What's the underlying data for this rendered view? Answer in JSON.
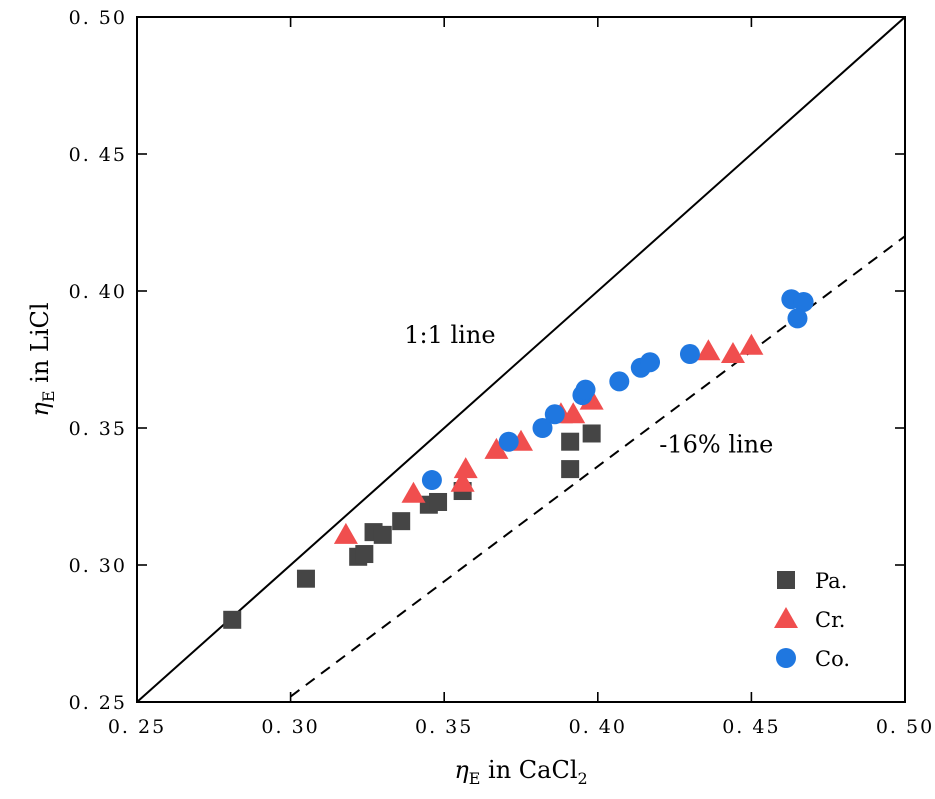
{
  "chart_data": {
    "type": "scatter",
    "xlabel": {
      "symbol": "η",
      "sub": "E",
      "text": " in CaCl",
      "sub2": "2"
    },
    "ylabel": {
      "symbol": "η",
      "sub": "E",
      "text": " in LiCl"
    },
    "xlim": [
      0.25,
      0.5
    ],
    "ylim": [
      0.25,
      0.5
    ],
    "xticks": [
      "0. 25",
      "0. 30",
      "0. 35",
      "0. 40",
      "0. 45",
      "0. 50"
    ],
    "yticks": [
      "0. 25",
      "0. 30",
      "0. 35",
      "0. 40",
      "0. 45",
      "0. 50"
    ],
    "grid": false,
    "legend_position": "bottom-right",
    "reference_lines": [
      {
        "label": "1:1 line",
        "style": "solid",
        "points": [
          [
            0.25,
            0.25
          ],
          [
            0.5,
            0.5
          ]
        ],
        "label_at": [
          0.337,
          0.381
        ]
      },
      {
        "label": "-16% line",
        "style": "dashed",
        "points": [
          [
            0.3,
            0.252
          ],
          [
            0.5,
            0.42
          ]
        ],
        "label_at": [
          0.42,
          0.341
        ]
      }
    ],
    "series": [
      {
        "name": "Pa.",
        "marker": "square",
        "color": "#454545",
        "points": [
          [
            0.281,
            0.28
          ],
          [
            0.305,
            0.295
          ],
          [
            0.322,
            0.303
          ],
          [
            0.324,
            0.304
          ],
          [
            0.327,
            0.312
          ],
          [
            0.33,
            0.311
          ],
          [
            0.336,
            0.316
          ],
          [
            0.345,
            0.322
          ],
          [
            0.348,
            0.323
          ],
          [
            0.356,
            0.327
          ],
          [
            0.391,
            0.345
          ],
          [
            0.398,
            0.348
          ],
          [
            0.391,
            0.335
          ]
        ]
      },
      {
        "name": "Cr.",
        "marker": "triangle",
        "color": "#f04e4e",
        "points": [
          [
            0.318,
            0.311
          ],
          [
            0.34,
            0.326
          ],
          [
            0.356,
            0.33
          ],
          [
            0.357,
            0.335
          ],
          [
            0.367,
            0.342
          ],
          [
            0.375,
            0.345
          ],
          [
            0.388,
            0.355
          ],
          [
            0.392,
            0.355
          ],
          [
            0.398,
            0.36
          ],
          [
            0.436,
            0.378
          ],
          [
            0.444,
            0.377
          ],
          [
            0.45,
            0.38
          ]
        ]
      },
      {
        "name": "Co.",
        "marker": "circle",
        "color": "#1f77e0",
        "points": [
          [
            0.346,
            0.331
          ],
          [
            0.371,
            0.345
          ],
          [
            0.382,
            0.35
          ],
          [
            0.386,
            0.355
          ],
          [
            0.395,
            0.362
          ],
          [
            0.396,
            0.364
          ],
          [
            0.407,
            0.367
          ],
          [
            0.414,
            0.372
          ],
          [
            0.417,
            0.374
          ],
          [
            0.43,
            0.377
          ],
          [
            0.463,
            0.397
          ],
          [
            0.467,
            0.396
          ],
          [
            0.465,
            0.39
          ]
        ]
      }
    ]
  }
}
